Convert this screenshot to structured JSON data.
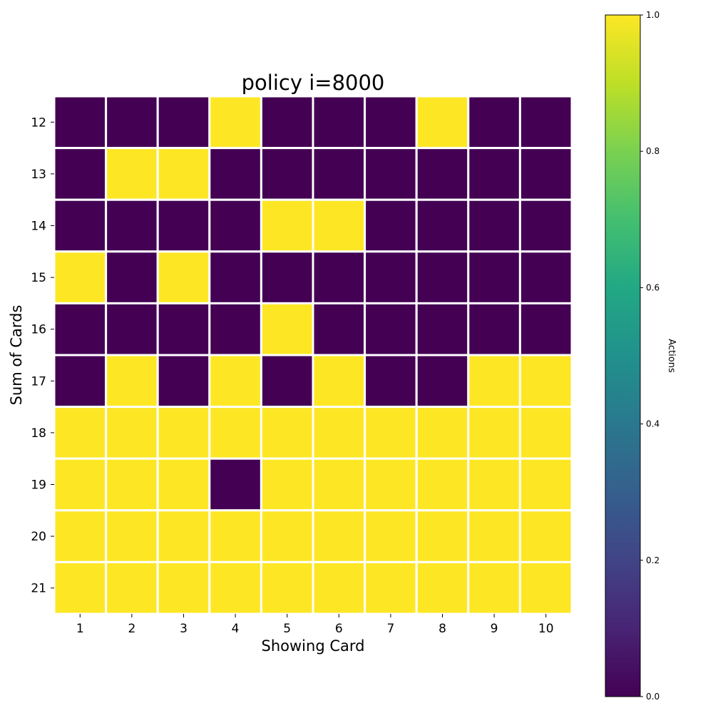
{
  "chart_data": {
    "type": "heatmap",
    "title": "policy i=8000",
    "xlabel": "Showing Card",
    "ylabel": "Sum of Cards",
    "x_categories": [
      "1",
      "2",
      "3",
      "4",
      "5",
      "6",
      "7",
      "8",
      "9",
      "10"
    ],
    "y_categories": [
      "12",
      "13",
      "14",
      "15",
      "16",
      "17",
      "18",
      "19",
      "20",
      "21"
    ],
    "values": [
      [
        0,
        0,
        0,
        1,
        0,
        0,
        0,
        1,
        0,
        0
      ],
      [
        0,
        1,
        1,
        0,
        0,
        0,
        0,
        0,
        0,
        0
      ],
      [
        0,
        0,
        0,
        0,
        1,
        1,
        0,
        0,
        0,
        0
      ],
      [
        1,
        0,
        1,
        0,
        0,
        0,
        0,
        0,
        0,
        0
      ],
      [
        0,
        0,
        0,
        0,
        1,
        0,
        0,
        0,
        0,
        0
      ],
      [
        0,
        1,
        0,
        1,
        0,
        1,
        0,
        0,
        1,
        1
      ],
      [
        1,
        1,
        1,
        1,
        1,
        1,
        1,
        1,
        1,
        1
      ],
      [
        1,
        1,
        1,
        0,
        1,
        1,
        1,
        1,
        1,
        1
      ],
      [
        1,
        1,
        1,
        1,
        1,
        1,
        1,
        1,
        1,
        1
      ],
      [
        1,
        1,
        1,
        1,
        1,
        1,
        1,
        1,
        1,
        1
      ]
    ],
    "colorbar": {
      "label": "Actions",
      "range": [
        0,
        1
      ],
      "ticks": [
        "0.0",
        "0.2",
        "0.4",
        "0.6",
        "0.8",
        "1.0"
      ],
      "colormap": "viridis"
    },
    "colors": {
      "low": "#440154",
      "high": "#fde725",
      "grid_line": "#ffffff"
    },
    "grid": false,
    "legend": "colorbar-right"
  }
}
